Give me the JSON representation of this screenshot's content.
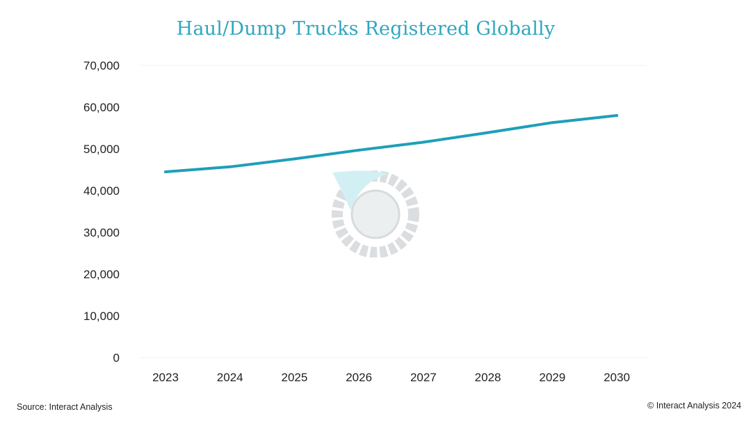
{
  "chart_data": {
    "type": "line",
    "title": "Haul/Dump Trucks Registered Globally",
    "xlabel": "",
    "ylabel": "",
    "categories": [
      "2023",
      "2024",
      "2025",
      "2026",
      "2027",
      "2028",
      "2029",
      "2030"
    ],
    "series": [
      {
        "values": [
          44500,
          45700,
          47600,
          49700,
          51600,
          53900,
          56300,
          58000
        ]
      }
    ],
    "ylim": [
      0,
      70000
    ],
    "yticks": [
      "0",
      "10,000",
      "20,000",
      "30,000",
      "40,000",
      "50,000",
      "60,000",
      "70,000"
    ],
    "grid": false,
    "line_color": "#1e9fb8"
  },
  "footer": {
    "source": "Source: Interact Analysis",
    "copyright": "© Interact Analysis 2024"
  }
}
